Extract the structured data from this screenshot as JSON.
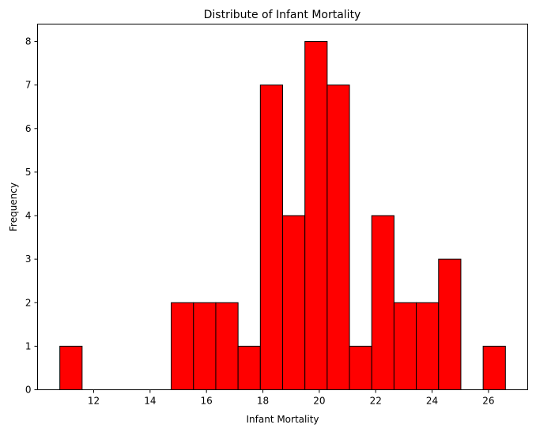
{
  "chart_data": {
    "type": "bar",
    "title": "Distribute of Infant Mortality",
    "xlabel": "Infant Mortality",
    "ylabel": "Frequency",
    "bin_edges": [
      10.8,
      11.59,
      12.38,
      13.17,
      13.96,
      14.75,
      15.54,
      16.33,
      17.12,
      17.91,
      18.7,
      19.49,
      20.28,
      21.07,
      21.86,
      22.65,
      23.44,
      24.23,
      25.02,
      25.81,
      26.6
    ],
    "values": [
      1,
      0,
      0,
      0,
      0,
      2,
      2,
      2,
      1,
      7,
      4,
      8,
      7,
      1,
      4,
      2,
      2,
      3,
      0,
      1
    ],
    "xlim": [
      10.01,
      27.39
    ],
    "ylim": [
      0,
      8.4
    ],
    "xticks": [
      12,
      14,
      16,
      18,
      20,
      22,
      24,
      26
    ],
    "yticks": [
      0,
      1,
      2,
      3,
      4,
      5,
      6,
      7,
      8
    ],
    "bar_color": "#ff0000",
    "edge_color": "#000000",
    "grid": false,
    "legend": "none"
  }
}
